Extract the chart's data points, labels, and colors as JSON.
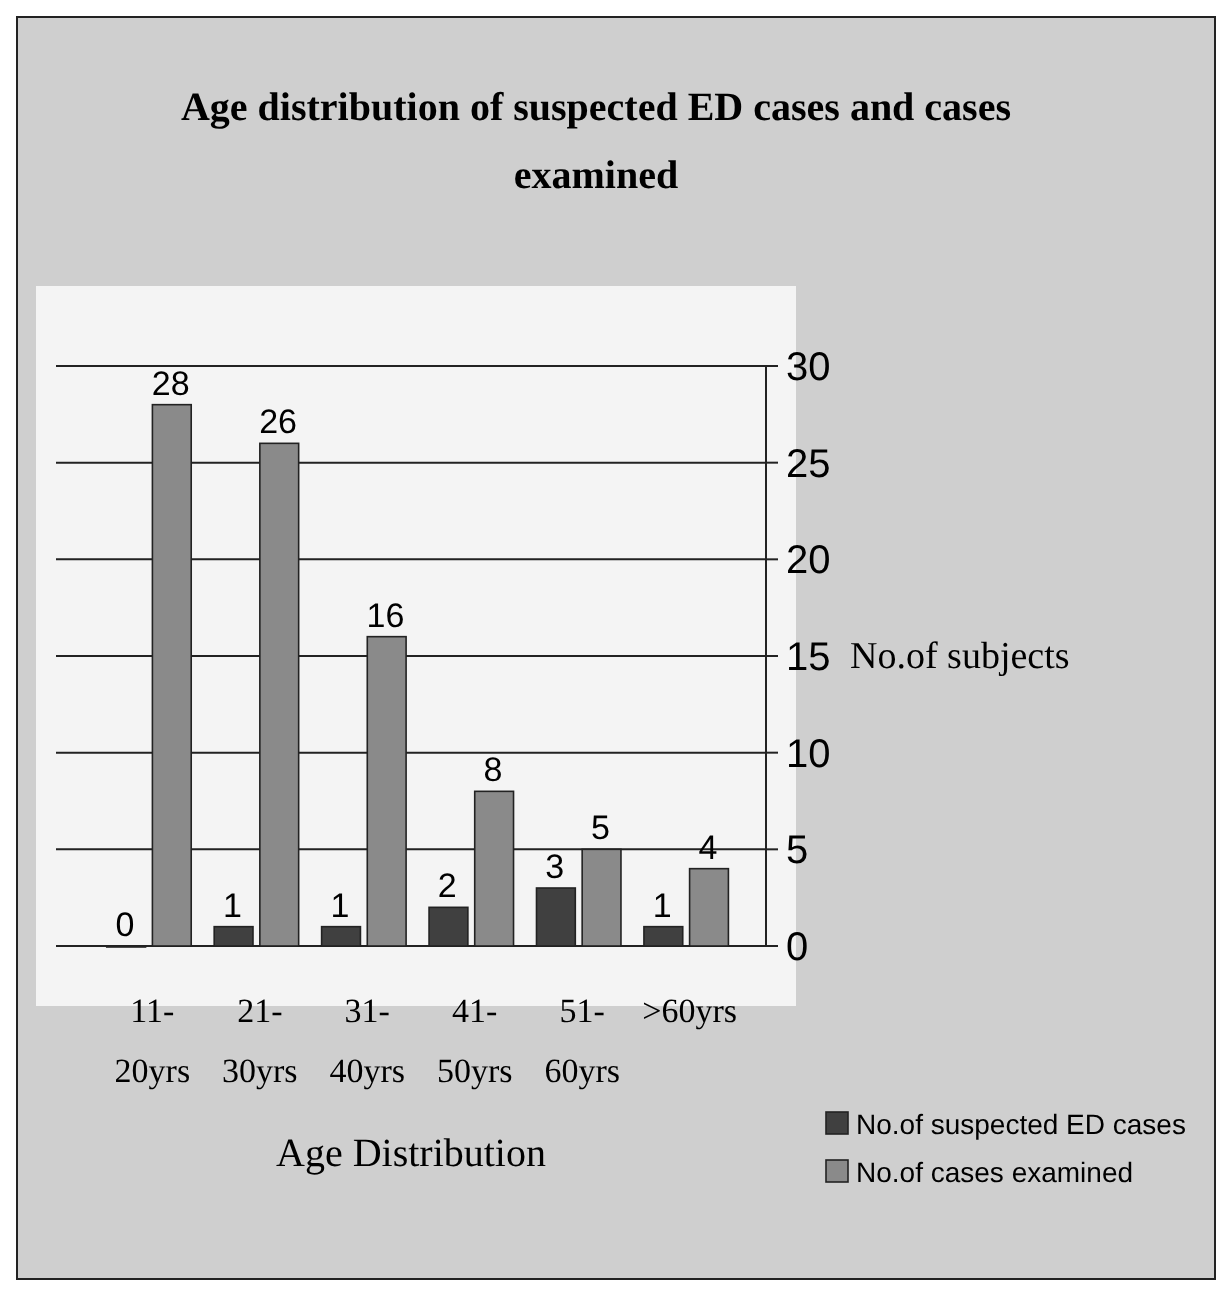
{
  "chart_data": {
    "type": "bar",
    "title": "Age distribution of suspected ED cases and cases examined",
    "xlabel": "Age Distribution",
    "ylabel": "No.of subjects",
    "categories": [
      "11-20yrs",
      "21-30yrs",
      "31-40yrs",
      "41-50yrs",
      "51-60yrs",
      ">60yrs"
    ],
    "series": [
      {
        "name": "No.of suspected ED cases",
        "color": "#404040",
        "values": [
          0,
          1,
          1,
          2,
          3,
          1
        ]
      },
      {
        "name": "No.of cases examined",
        "color": "#8a8a8a",
        "values": [
          28,
          26,
          16,
          8,
          5,
          4
        ]
      }
    ],
    "ylim": [
      0,
      30
    ],
    "yticks": [
      0,
      5,
      10,
      15,
      20,
      25,
      30
    ],
    "grid": "y",
    "data_labels": true,
    "legend": "bottom right"
  }
}
